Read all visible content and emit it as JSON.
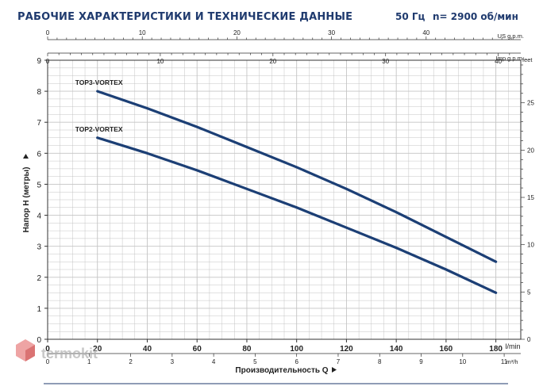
{
  "header": {
    "title": "РАБОЧИЕ ХАРАКТЕРИСТИКИ И ТЕХНИЧЕСКИЕ ДАННЫЕ",
    "frequency": "50 Гц",
    "speed": "n= 2900 об/мин"
  },
  "watermark": {
    "text": "termokit"
  },
  "colors": {
    "curve": "#1c3f75",
    "grid": "#c4c4c4",
    "title": "#1f3a6e"
  },
  "chart_data": {
    "type": "line",
    "grid": true,
    "xlabel": "Производительность Q",
    "ylabel": "Напор H (метры)",
    "x_unit": "l/min",
    "xlim": [
      0,
      190
    ],
    "ylim": [
      0,
      9
    ],
    "x_ticks": [
      0,
      20,
      40,
      60,
      80,
      100,
      120,
      140,
      160,
      180
    ],
    "y_ticks": [
      0,
      1,
      2,
      3,
      4,
      5,
      6,
      7,
      8,
      9
    ],
    "series": [
      {
        "name": "TOP3-VORTEX",
        "x": [
          20,
          40,
          60,
          80,
          100,
          120,
          140,
          160,
          180
        ],
        "y": [
          8.0,
          7.45,
          6.85,
          6.2,
          5.55,
          4.85,
          4.1,
          3.3,
          2.5
        ]
      },
      {
        "name": "TOP2-VORTEX",
        "x": [
          20,
          40,
          60,
          80,
          100,
          120,
          140,
          160,
          180
        ],
        "y": [
          6.5,
          6.0,
          5.45,
          4.85,
          4.25,
          3.6,
          2.95,
          2.25,
          1.5
        ]
      }
    ],
    "secondary_axes": {
      "us_gpm": {
        "label": "US g.p.m.",
        "max": 50,
        "ticks": [
          0,
          10,
          20,
          30,
          40
        ]
      },
      "imp_gpm": {
        "label": "Imp g.p.m.",
        "max": 42,
        "ticks": [
          0,
          10,
          20,
          30,
          40
        ]
      },
      "m3h": {
        "label": "m³/h",
        "max": 11.4,
        "ticks": [
          0,
          1,
          2,
          3,
          4,
          5,
          6,
          7,
          8,
          9,
          10,
          11
        ]
      },
      "feet": {
        "label": "feet",
        "max": 29.5,
        "ticks": [
          0,
          5,
          10,
          15,
          20,
          25
        ]
      }
    }
  }
}
